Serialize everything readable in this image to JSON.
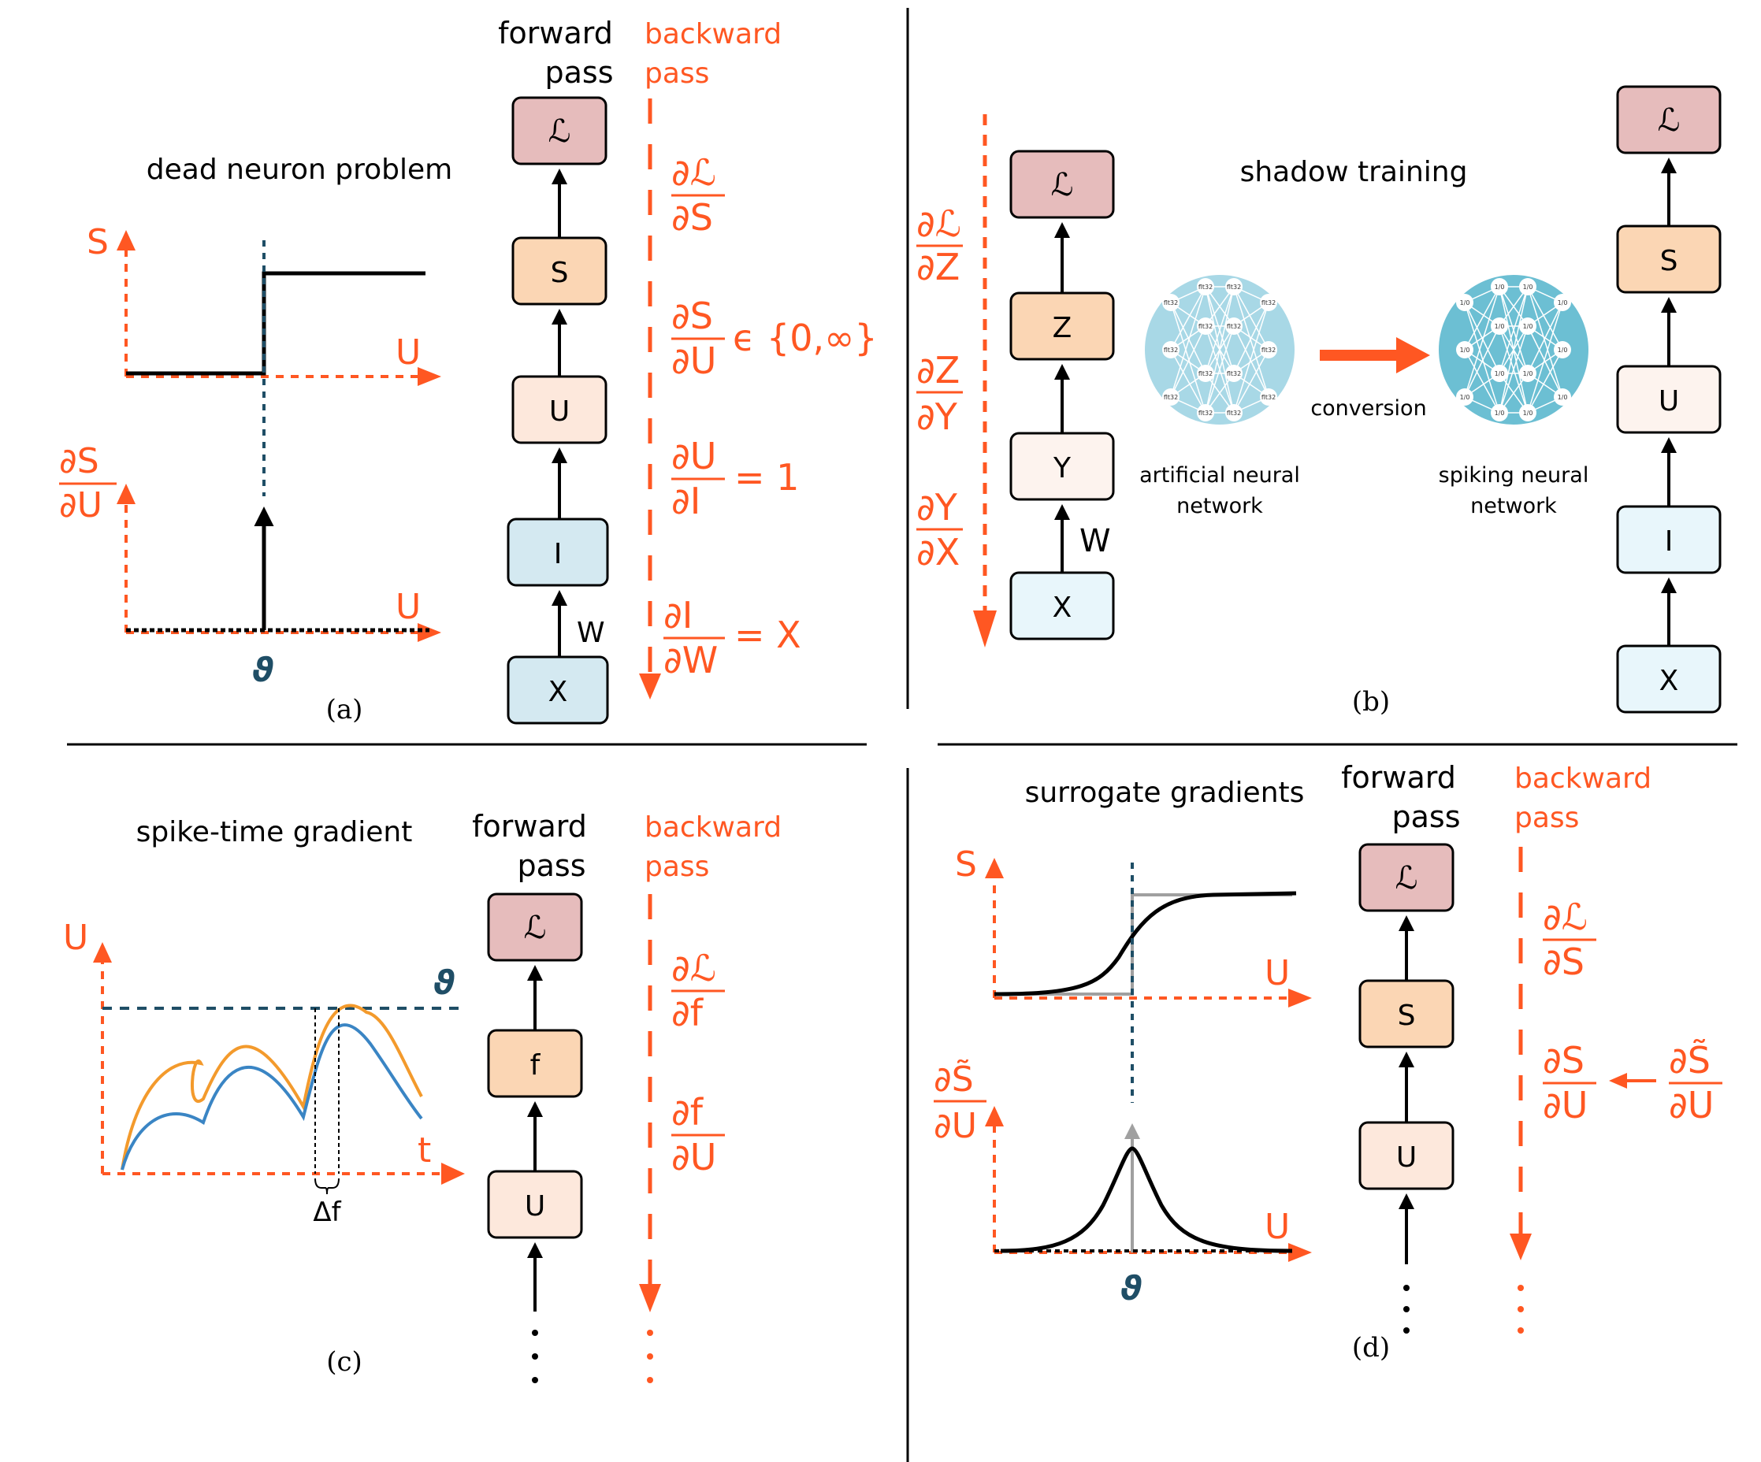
{
  "colors": {
    "accent": "#ff5722",
    "threshold": "#1f4e66",
    "loss_box": "#e6bcbc",
    "orange_box": "#fbd6b4",
    "peach_box": "#fde8dc",
    "blue_box": "#d4e9f1",
    "light_blue_box": "#e8f6fb",
    "network": "#a8d8e6",
    "network_dark": "#6cbfd3",
    "trace_orange": "#f39a2c",
    "trace_blue": "#3a85c4"
  },
  "panel_a": {
    "title": "dead neuron problem",
    "caption": "(a)",
    "forward_label": [
      "forward",
      "pass"
    ],
    "backward_label": [
      "backward",
      "pass"
    ],
    "boxes": [
      "ℒ",
      "S",
      "U",
      "I",
      "X"
    ],
    "weight_label": "W",
    "axis_s": "S",
    "axis_u": "U",
    "axis_u2": "U",
    "axis_dsdu_num": "∂S",
    "axis_dsdu_den": "∂U",
    "theta": "ϑ",
    "grads": [
      {
        "num": "∂ℒ",
        "den": "∂S",
        "suffix": ""
      },
      {
        "num": "∂S",
        "den": "∂U",
        "suffix": "ϵ {0,∞}"
      },
      {
        "num": "∂U",
        "den": "∂I",
        "suffix": "= 1"
      },
      {
        "num": "∂I",
        "den": "∂W",
        "suffix": "= X"
      }
    ]
  },
  "panel_b": {
    "title": "shadow training",
    "caption": "(b)",
    "left_boxes": [
      "ℒ",
      "Z",
      "Y",
      "X"
    ],
    "right_boxes": [
      "ℒ",
      "S",
      "U",
      "I",
      "X"
    ],
    "weight_label": "W",
    "grads": [
      {
        "num": "∂ℒ",
        "den": "∂Z"
      },
      {
        "num": "∂Z",
        "den": "∂Y"
      },
      {
        "num": "∂Y",
        "den": "∂X"
      }
    ],
    "ann_label": [
      "artificial neural",
      "network"
    ],
    "snn_label": [
      "spiking neural",
      "network"
    ],
    "conversion_label": "conversion",
    "ann_node_text": "flt32",
    "snn_node_text": "1/0"
  },
  "panel_c": {
    "title": "spike-time gradient",
    "caption": "(c)",
    "forward_label": [
      "forward",
      "pass"
    ],
    "backward_label": [
      "backward",
      "pass"
    ],
    "boxes": [
      "ℒ",
      "f",
      "U"
    ],
    "axis_u": "U",
    "axis_t": "t",
    "theta": "ϑ",
    "delta": "Δf",
    "grads": [
      {
        "num": "∂ℒ",
        "den": "∂f"
      },
      {
        "num": "∂f",
        "den": "∂U"
      }
    ]
  },
  "panel_d": {
    "title": "surrogate gradients",
    "caption": "(d)",
    "forward_label": [
      "forward",
      "pass"
    ],
    "backward_label": [
      "backward",
      "pass"
    ],
    "boxes": [
      "ℒ",
      "S",
      "U"
    ],
    "axis_s": "S",
    "axis_u": "U",
    "axis_u2": "U",
    "axis_num": "∂S̃",
    "axis_den": "∂U",
    "theta": "ϑ",
    "grads": [
      {
        "num": "∂ℒ",
        "den": "∂S"
      },
      {
        "num": "∂S",
        "den": "∂U"
      }
    ],
    "surrogate": {
      "num": "∂S̃",
      "den": "∂U"
    }
  }
}
